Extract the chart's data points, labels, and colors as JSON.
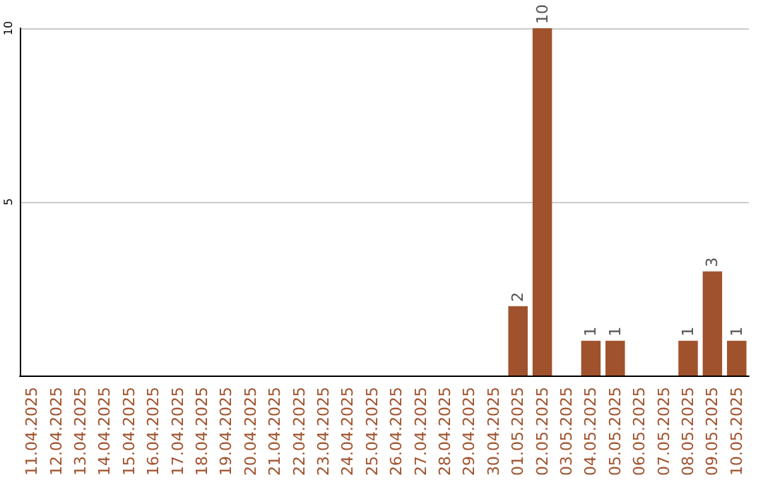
{
  "chart_data": {
    "type": "bar",
    "categories": [
      "11.04.2025",
      "12.04.2025",
      "13.04.2025",
      "14.04.2025",
      "15.04.2025",
      "16.04.2025",
      "17.04.2025",
      "18.04.2025",
      "19.04.2025",
      "20.04.2025",
      "21.04.2025",
      "22.04.2025",
      "23.04.2025",
      "24.04.2025",
      "25.04.2025",
      "26.04.2025",
      "27.04.2025",
      "28.04.2025",
      "29.04.2025",
      "30.04.2025",
      "01.05.2025",
      "02.05.2025",
      "03.05.2025",
      "04.05.2025",
      "05.05.2025",
      "06.05.2025",
      "07.05.2025",
      "08.05.2025",
      "09.05.2025",
      "10.05.2025"
    ],
    "values": [
      0,
      0,
      0,
      0,
      0,
      0,
      0,
      0,
      0,
      0,
      0,
      0,
      0,
      0,
      0,
      0,
      0,
      0,
      0,
      0,
      2,
      10,
      0,
      1,
      1,
      0,
      0,
      1,
      3,
      1
    ],
    "value_labels": [
      null,
      null,
      null,
      null,
      null,
      null,
      null,
      null,
      null,
      null,
      null,
      null,
      null,
      null,
      null,
      null,
      null,
      null,
      null,
      null,
      "2",
      "10",
      null,
      "1",
      "1",
      null,
      null,
      "1",
      "3",
      "1"
    ],
    "color": "#a0522d",
    "ylim": [
      0,
      10
    ],
    "yticks": [
      5,
      10
    ],
    "grid": "y"
  }
}
